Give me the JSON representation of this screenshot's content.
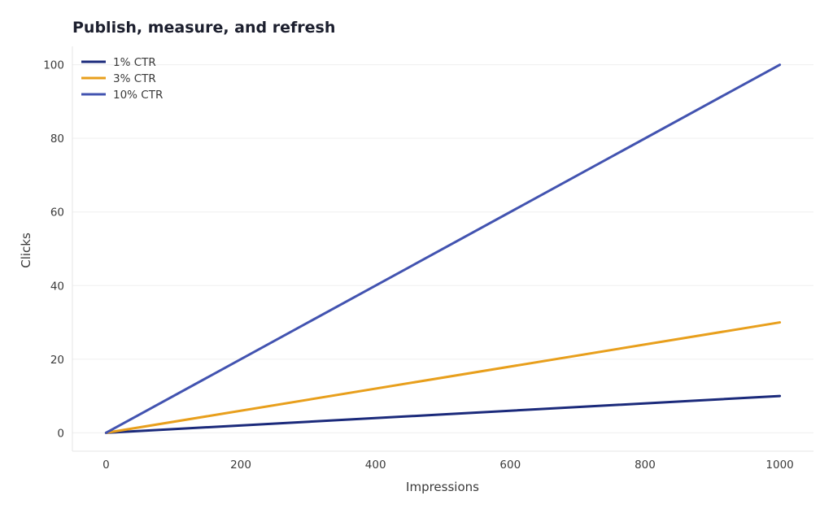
{
  "chart_data": {
    "type": "line",
    "title": "Publish, measure, and refresh",
    "xlabel": "Impressions",
    "ylabel": "Clicks",
    "x": [
      0,
      1000
    ],
    "xlim": [
      -50,
      1050
    ],
    "ylim": [
      -5,
      105
    ],
    "xticks": [
      0,
      200,
      400,
      600,
      800,
      1000
    ],
    "yticks": [
      0,
      20,
      40,
      60,
      80,
      100
    ],
    "grid": "horizontal",
    "legend_position": "top-left",
    "series": [
      {
        "name": "1% CTR",
        "values": [
          0,
          10
        ],
        "color": "#1b2a7b"
      },
      {
        "name": "3% CTR",
        "values": [
          0,
          30
        ],
        "color": "#e89f1c"
      },
      {
        "name": "10% CTR",
        "values": [
          0,
          100
        ],
        "color": "#4253b0"
      }
    ]
  }
}
